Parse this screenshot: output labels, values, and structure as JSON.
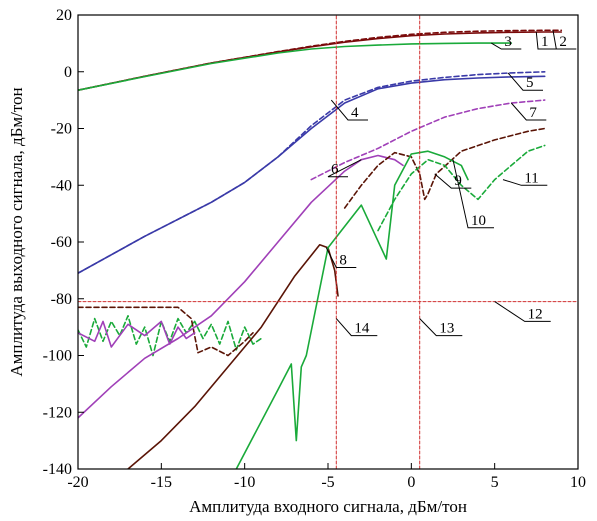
{
  "chart_data": {
    "type": "line",
    "title": "",
    "xlabel": "Амплитуда входного сигнала, дБм/тон",
    "ylabel": "Амплитуда выходного сигнала, дБм/тон",
    "xlim": [
      -20,
      10
    ],
    "ylim": [
      -140,
      20
    ],
    "xticks": [
      -20,
      -15,
      -10,
      -5,
      0,
      5,
      10
    ],
    "yticks": [
      -140,
      -120,
      -100,
      -80,
      -60,
      -40,
      -20,
      0,
      20
    ],
    "xtick_labels": [
      "-20",
      "-15",
      "-10",
      "-5",
      "0",
      "5",
      "10"
    ],
    "ytick_labels": [
      "-140",
      "-120",
      "-100",
      "-80",
      "-60",
      "-40",
      "-20",
      "0",
      "20"
    ],
    "grid": false,
    "colors": {
      "brown": "#7a0a0a",
      "green": "#1aaa3a",
      "blue": "#3a3aa8",
      "magenta": "#a040b8",
      "darkbrown": "#5a1406",
      "ref_red": "#d03030"
    },
    "series": [
      {
        "name": "1",
        "color": "#7a0a0a",
        "dash": "solid",
        "x": [
          -20,
          -16,
          -12,
          -8,
          -6,
          -4,
          -2,
          0,
          2,
          4,
          6,
          8,
          9
        ],
        "y": [
          -6.5,
          -1.6,
          3.1,
          7.0,
          8.8,
          10.4,
          11.7,
          12.7,
          13.3,
          13.7,
          13.9,
          14.0,
          14.0
        ]
      },
      {
        "name": "2",
        "color": "#7a0a0a",
        "dash": "dashed",
        "x": [
          -20,
          -16,
          -12,
          -8,
          -6,
          -4,
          -2,
          0,
          2,
          4,
          6,
          8,
          9
        ],
        "y": [
          -6.5,
          -1.6,
          3.1,
          7.1,
          9.0,
          10.7,
          12.1,
          13.2,
          13.9,
          14.3,
          14.5,
          14.6,
          14.6
        ]
      },
      {
        "name": "3",
        "color": "#1aaa3a",
        "dash": "solid",
        "x": [
          -20,
          -16,
          -12,
          -8,
          -6,
          -4,
          -2,
          0,
          2,
          4,
          6
        ],
        "y": [
          -6.5,
          -1.7,
          2.9,
          6.6,
          8.0,
          8.9,
          9.4,
          9.8,
          10.0,
          10.1,
          10.1
        ]
      },
      {
        "name": "4",
        "color": "#3a3aa8",
        "dash": "solid",
        "x": [
          -20,
          -16,
          -12,
          -10,
          -8,
          -6,
          -4,
          -2,
          0,
          2,
          4,
          6,
          8
        ],
        "y": [
          -71,
          -58,
          -46,
          -39,
          -30,
          -20,
          -11,
          -6,
          -4,
          -2.8,
          -2.2,
          -1.8,
          -1.6
        ]
      },
      {
        "name": "5",
        "color": "#3a3aa8",
        "dash": "dashed",
        "x": [
          -20,
          -16,
          -12,
          -10,
          -8,
          -6,
          -4,
          -2,
          0,
          2,
          4,
          6,
          8
        ],
        "y": [
          -71,
          -58,
          -46,
          -39,
          -30,
          -19,
          -10,
          -5.5,
          -3.3,
          -2.0,
          -1.0,
          -0.4,
          0.0
        ]
      },
      {
        "name": "6",
        "color": "#a040b8",
        "dash": "solid",
        "x": [
          -20,
          -18,
          -16,
          -14,
          -12,
          -10,
          -8,
          -6,
          -4,
          -3,
          -2,
          -1,
          -0.5
        ],
        "y": [
          -122,
          -111,
          -101,
          -94,
          -86,
          -74,
          -60,
          -46,
          -35,
          -31,
          -29.5,
          -31,
          -33
        ]
      },
      {
        "name": "7",
        "color": "#a040b8",
        "dash": "dashed",
        "x": [
          -6,
          -4,
          -2,
          0,
          2,
          4,
          6,
          8
        ],
        "y": [
          -38,
          -32,
          -27,
          -21,
          -16,
          -13,
          -11,
          -10
        ]
      },
      {
        "name": "8",
        "color": "#5a1406",
        "dash": "solid",
        "x": [
          -17,
          -15,
          -13,
          -11,
          -9,
          -7,
          -5.5,
          -5,
          -4.6,
          -4.4
        ],
        "y": [
          -140,
          -130,
          -118,
          -104,
          -90,
          -72,
          -61,
          -62,
          -70,
          -79
        ]
      },
      {
        "name": "9",
        "color": "#5a1406",
        "dash": "dashed",
        "x": [
          -4,
          -3,
          -2,
          -1,
          0,
          0.5,
          0.8,
          1.0,
          1.5,
          3,
          5,
          7,
          8
        ],
        "y": [
          -48,
          -40,
          -33,
          -28.5,
          -30,
          -36,
          -45,
          -43,
          -36,
          -28,
          -24,
          -21,
          -20
        ]
      },
      {
        "name": "10",
        "color": "#1aaa3a",
        "dash": "solid",
        "x": [
          -10.5,
          -8,
          -7.2,
          -6.9,
          -6.6,
          -6.3,
          -5,
          -3,
          -1.5,
          -1,
          0,
          1,
          2,
          3,
          3.4
        ],
        "y": [
          -140,
          -112,
          -103,
          -130,
          -104,
          -100,
          -62,
          -47,
          -66,
          -40,
          -29,
          -28,
          -30,
          -33,
          -38
        ]
      },
      {
        "name": "11",
        "color": "#1aaa3a",
        "dash": "dashed",
        "x": [
          -2,
          -1,
          0,
          1,
          2,
          3,
          4,
          5,
          6,
          7,
          8
        ],
        "y": [
          -56,
          -45,
          -36,
          -31,
          -33,
          -40,
          -45,
          -38,
          -33,
          -28,
          -26
        ]
      },
      {
        "name": "12",
        "color": "#d03030",
        "dash": "dashed",
        "x": [
          -20,
          10
        ],
        "y": [
          -81,
          -81
        ]
      },
      {
        "name": "13",
        "color": "#d03030",
        "dash": "dashed",
        "x": [
          0.5,
          0.5
        ],
        "y": [
          -140,
          20
        ]
      },
      {
        "name": "14",
        "color": "#d03030",
        "dash": "dashed",
        "x": [
          -4.5,
          -4.5
        ],
        "y": [
          -140,
          20
        ]
      }
    ],
    "noise_floor": [
      {
        "color": "#1aaa3a",
        "dash": "dashed",
        "x": [
          -20,
          -19.5,
          -19,
          -18.5,
          -18,
          -17.5,
          -17,
          -16.5,
          -16,
          -15.5,
          -15,
          -14.5,
          -14,
          -13.5,
          -13,
          -12.5,
          -12,
          -11.5,
          -11,
          -10.5,
          -10,
          -9.5,
          -9
        ],
        "y": [
          -91,
          -97,
          -87,
          -95,
          -88,
          -93,
          -86,
          -96,
          -90,
          -100,
          -88,
          -95,
          -87,
          -92,
          -88,
          -94,
          -89,
          -96,
          -88,
          -98,
          -90,
          -96,
          -94
        ]
      },
      {
        "color": "#5a1406",
        "dash": "dashed",
        "x": [
          -20,
          -18,
          -16,
          -14,
          -13.2,
          -12.8,
          -12,
          -11,
          -10,
          -9.5
        ],
        "y": [
          -83,
          -83,
          -83,
          -83,
          -87,
          -99,
          -97,
          -100,
          -95,
          -92
        ]
      },
      {
        "color": "#a040b8",
        "dash": "solid",
        "x": [
          -20,
          -19,
          -18.5,
          -18,
          -17,
          -16,
          -15,
          -14.5,
          -14,
          -13.5,
          -13
        ],
        "y": [
          -92,
          -95,
          -88,
          -97,
          -89,
          -93,
          -88,
          -96,
          -90,
          -94,
          -92
        ]
      }
    ],
    "annotations": [
      {
        "text": "1",
        "x": 7.5,
        "y": 14.0,
        "lx": 7.6,
        "ly": 8.0
      },
      {
        "text": "2",
        "x": 8.5,
        "y": 14.6,
        "lx": 8.7,
        "ly": 8.0
      },
      {
        "text": "3",
        "x": 4.8,
        "y": 10.1,
        "lx": 5.4,
        "ly": 8.0
      },
      {
        "text": "4",
        "x": -4.8,
        "y": -10.0,
        "lx": -3.8,
        "ly": -17.0
      },
      {
        "text": "5",
        "x": 5.8,
        "y": -0.4,
        "lx": 6.7,
        "ly": -6.5
      },
      {
        "text": "6",
        "x": -3.0,
        "y": -31.0,
        "lx": -5.0,
        "ly": -37.0
      },
      {
        "text": "7",
        "x": 6.0,
        "y": -11.0,
        "lx": 6.9,
        "ly": -17.0
      },
      {
        "text": "8",
        "x": -5.1,
        "y": -62.0,
        "lx": -4.5,
        "ly": -69.0
      },
      {
        "text": "9",
        "x": 1.4,
        "y": -36.0,
        "lx": 2.4,
        "ly": -41.0
      },
      {
        "text": "10",
        "x": 2.5,
        "y": -31.0,
        "lx": 3.4,
        "ly": -55.0
      },
      {
        "text": "11",
        "x": 5.5,
        "y": -38.0,
        "lx": 6.6,
        "ly": -40.0
      },
      {
        "text": "12",
        "x": 5.0,
        "y": -81.0,
        "lx": 6.8,
        "ly": -88.0
      },
      {
        "text": "13",
        "x": 0.5,
        "y": -87.0,
        "lx": 1.5,
        "ly": -93.0
      },
      {
        "text": "14",
        "x": -4.5,
        "y": -87.0,
        "lx": -3.6,
        "ly": -93.0
      }
    ]
  }
}
